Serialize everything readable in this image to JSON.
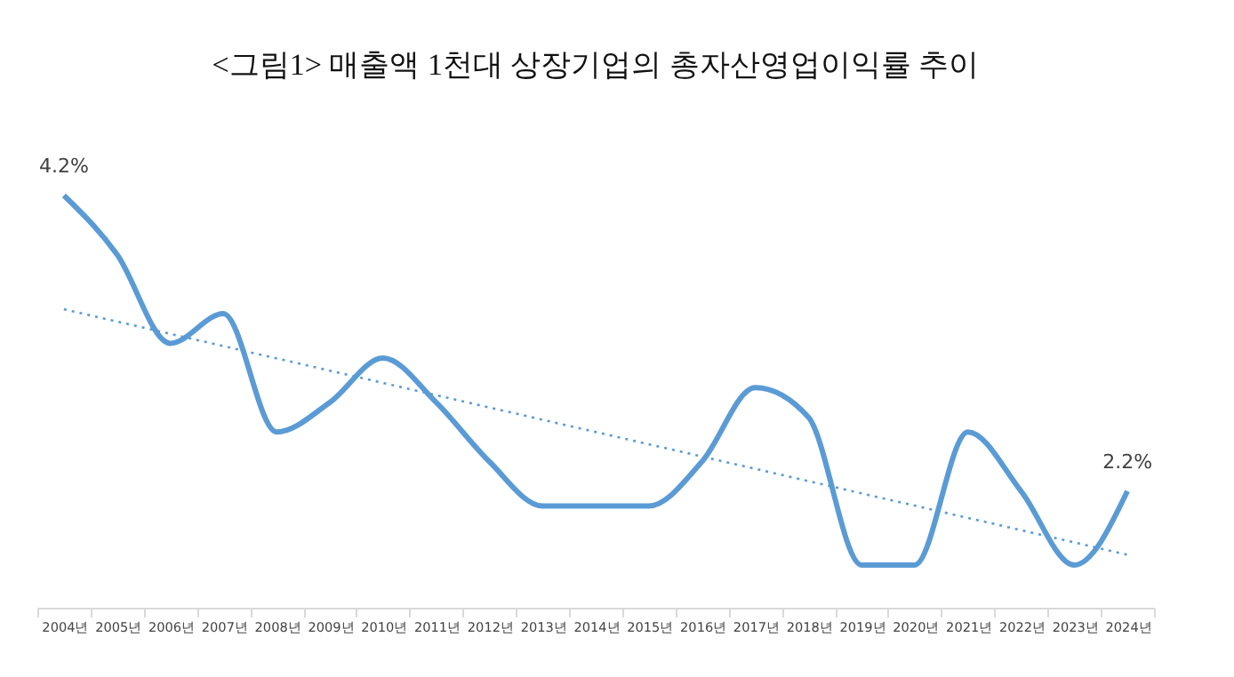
{
  "chart_data": {
    "type": "line",
    "title": "<그림1> 매출액 1천대 상장기업의 총자산영업이익률 추이",
    "categories": [
      "2004년",
      "2005년",
      "2006년",
      "2007년",
      "2008년",
      "2009년",
      "2010년",
      "2011년",
      "2012년",
      "2013년",
      "2014년",
      "2015년",
      "2016년",
      "2017년",
      "2018년",
      "2019년",
      "2020년",
      "2021년",
      "2022년",
      "2023년",
      "2024년"
    ],
    "series": [
      {
        "color": "#5b9bd5",
        "values": [
          4.2,
          3.8,
          3.2,
          3.4,
          2.6,
          2.8,
          3.1,
          2.8,
          2.4,
          2.1,
          2.1,
          2.1,
          2.4,
          2.9,
          2.7,
          1.7,
          1.7,
          2.6,
          2.2,
          1.7,
          2.2
        ],
        "value_labels": [
          "4.2%",
          null,
          null,
          null,
          null,
          null,
          null,
          null,
          null,
          null,
          null,
          null,
          null,
          null,
          null,
          null,
          null,
          null,
          null,
          null,
          "2.2%"
        ],
        "line_style": "solid"
      },
      {
        "type": "line",
        "color": "#5b9bd5",
        "x": [
          "2004년",
          "2024년"
        ],
        "values": [
          3.43,
          1.77
        ],
        "line_style": "dotted"
      }
    ],
    "tick_labels": "x",
    "grid": false,
    "marker": "none"
  }
}
